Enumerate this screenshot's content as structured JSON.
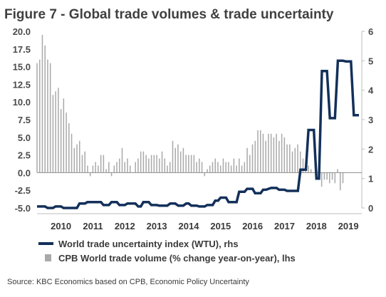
{
  "title": "Figure 7 - Global trade volumes & trade uncertainty",
  "source": "Source: KBC Economics based on CPB, Economic Policy Uncertainty",
  "colors": {
    "line": "#13305a",
    "bar": "#a9a9a9",
    "zero": "#8c8c8c",
    "axis": "#bdbdbd"
  },
  "chart_data": {
    "type": "bar+line",
    "title": "Figure 7 - Global trade volumes & trade uncertainty",
    "y_left": {
      "range": [
        -5,
        20
      ],
      "ticks": [
        "20.0",
        "17.5",
        "15.0",
        "12.5",
        "10.0",
        "7.5",
        "5.0",
        "2.5",
        "0.0",
        "-2.5",
        "-5.0"
      ]
    },
    "y_right": {
      "range": [
        0,
        6
      ],
      "ticks": [
        "6",
        "5",
        "4",
        "3",
        "2",
        "1",
        "0"
      ]
    },
    "x_range": [
      2009.75,
      2019.92
    ],
    "x_labels": [
      {
        "label": "2010",
        "x": 2010.0
      },
      {
        "label": "2011",
        "x": 2011.0
      },
      {
        "label": "2012",
        "x": 2012.0
      },
      {
        "label": "2013",
        "x": 2013.0
      },
      {
        "label": "2014",
        "x": 2014.0
      },
      {
        "label": "2015",
        "x": 2015.0
      },
      {
        "label": "2016",
        "x": 2016.0
      },
      {
        "label": "2017",
        "x": 2017.0
      },
      {
        "label": "2018",
        "x": 2018.0
      },
      {
        "label": "2019",
        "x": 2019.0
      }
    ],
    "legend": [
      {
        "label": "World trade uncertainty index (WTU), rhs",
        "kind": "line"
      },
      {
        "label": "CPB World trade volume (% change year-on-year), lhs",
        "kind": "bar"
      }
    ],
    "series": [
      {
        "name": "CPB World trade volume (% change year-on-year), lhs",
        "kind": "bar",
        "axis": "left",
        "start": 2009.75,
        "step": 0.0833,
        "values": [
          15.5,
          16.0,
          19.5,
          18.0,
          16.0,
          15.5,
          11.0,
          11.5,
          12.0,
          9.0,
          10.5,
          8.5,
          7.0,
          5.5,
          3.5,
          4.0,
          4.5,
          2.5,
          3.0,
          1.0,
          -0.5,
          1.0,
          1.5,
          1.0,
          2.5,
          2.5,
          0.5,
          1.5,
          -0.5,
          1.0,
          1.5,
          2.0,
          3.5,
          1.5,
          2.0,
          1.0,
          0.0,
          1.5,
          2.0,
          3.0,
          3.0,
          2.5,
          2.0,
          2.5,
          2.5,
          2.5,
          2.0,
          3.0,
          2.0,
          1.0,
          1.5,
          4.5,
          3.5,
          4.0,
          3.0,
          3.5,
          2.5,
          2.5,
          2.5,
          2.5,
          1.5,
          2.0,
          1.5,
          -0.5,
          0.5,
          1.0,
          1.5,
          2.0,
          1.5,
          1.0,
          2.0,
          1.5,
          1.5,
          1.0,
          2.0,
          1.0,
          2.0,
          1.0,
          1.5,
          3.5,
          2.5,
          4.0,
          4.5,
          6.0,
          6.0,
          5.5,
          4.5,
          5.5,
          5.5,
          5.0,
          5.5,
          4.5,
          5.5,
          5.0,
          4.0,
          4.0,
          3.0,
          3.5,
          4.0,
          3.0,
          2.0,
          1.5,
          1.0,
          0.5,
          0.0,
          -0.5,
          -1.0,
          -2.0,
          -1.0,
          -1.0,
          -1.5,
          -1.0,
          -1.5,
          0.5,
          -2.5,
          -1.5
        ]
      },
      {
        "name": "World trade uncertainty index (WTU), rhs",
        "kind": "line",
        "axis": "right",
        "points": [
          [
            2009.75,
            0.05
          ],
          [
            2010.0,
            0.05
          ],
          [
            2010.08,
            0.0
          ],
          [
            2010.25,
            0.0
          ],
          [
            2010.33,
            0.05
          ],
          [
            2010.5,
            0.05
          ],
          [
            2010.58,
            0.0
          ],
          [
            2011.0,
            0.0
          ],
          [
            2011.08,
            0.15
          ],
          [
            2011.25,
            0.15
          ],
          [
            2011.33,
            0.2
          ],
          [
            2011.75,
            0.2
          ],
          [
            2011.83,
            0.1
          ],
          [
            2012.0,
            0.1
          ],
          [
            2012.08,
            0.2
          ],
          [
            2012.25,
            0.2
          ],
          [
            2012.33,
            0.1
          ],
          [
            2012.5,
            0.1
          ],
          [
            2012.58,
            0.15
          ],
          [
            2012.83,
            0.15
          ],
          [
            2012.92,
            0.05
          ],
          [
            2013.0,
            0.05
          ],
          [
            2013.08,
            0.2
          ],
          [
            2013.25,
            0.2
          ],
          [
            2013.33,
            0.1
          ],
          [
            2013.5,
            0.1
          ],
          [
            2013.58,
            0.08
          ],
          [
            2013.83,
            0.08
          ],
          [
            2013.92,
            0.15
          ],
          [
            2014.08,
            0.15
          ],
          [
            2014.17,
            0.08
          ],
          [
            2014.33,
            0.08
          ],
          [
            2014.42,
            0.15
          ],
          [
            2014.5,
            0.15
          ],
          [
            2014.58,
            0.08
          ],
          [
            2014.75,
            0.08
          ],
          [
            2014.83,
            0.05
          ],
          [
            2015.0,
            0.05
          ],
          [
            2015.08,
            0.1
          ],
          [
            2015.25,
            0.1
          ],
          [
            2015.33,
            0.25
          ],
          [
            2015.42,
            0.25
          ],
          [
            2015.5,
            0.35
          ],
          [
            2015.67,
            0.35
          ],
          [
            2015.75,
            0.2
          ],
          [
            2015.92,
            0.2
          ],
          [
            2016.0,
            0.2
          ],
          [
            2016.08,
            0.55
          ],
          [
            2016.25,
            0.55
          ],
          [
            2016.33,
            0.65
          ],
          [
            2016.5,
            0.65
          ],
          [
            2016.58,
            0.5
          ],
          [
            2016.75,
            0.5
          ],
          [
            2016.83,
            0.62
          ],
          [
            2016.92,
            0.62
          ],
          [
            2017.0,
            0.65
          ],
          [
            2017.08,
            0.68
          ],
          [
            2017.25,
            0.68
          ],
          [
            2017.33,
            0.62
          ],
          [
            2017.5,
            0.62
          ],
          [
            2017.58,
            0.58
          ],
          [
            2017.92,
            0.58
          ],
          [
            2018.0,
            1.3
          ],
          [
            2018.17,
            1.3
          ],
          [
            2018.25,
            2.65
          ],
          [
            2018.42,
            2.65
          ],
          [
            2018.5,
            1.0
          ],
          [
            2018.58,
            1.0
          ],
          [
            2018.67,
            4.65
          ],
          [
            2018.83,
            4.65
          ],
          [
            2018.92,
            3.05
          ],
          [
            2019.08,
            3.05
          ],
          [
            2019.17,
            5.0
          ],
          [
            2019.33,
            5.0
          ],
          [
            2019.42,
            4.98
          ],
          [
            2019.58,
            4.98
          ],
          [
            2019.67,
            3.15
          ],
          [
            2019.83,
            3.15
          ]
        ]
      }
    ]
  }
}
